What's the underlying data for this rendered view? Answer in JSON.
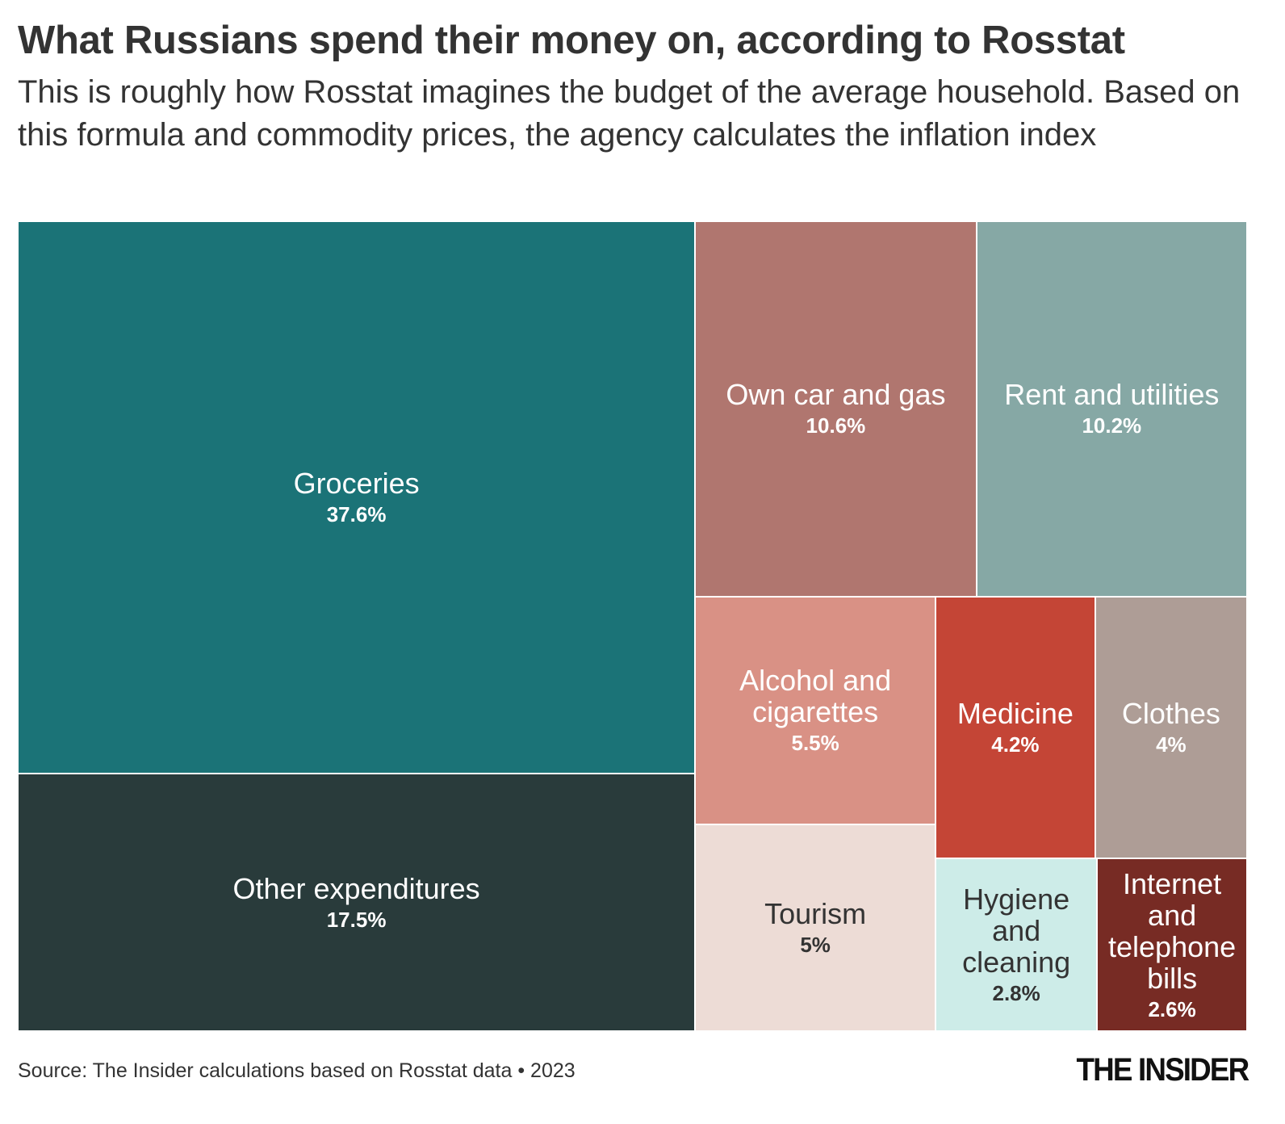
{
  "chart_data": {
    "type": "treemap",
    "title": "What Russians spend their money on, according to Rosstat",
    "subtitle": "This is roughly how Rosstat imagines the budget of the average household. Based on this formula and commodity prices, the agency calculates the inflation index",
    "source": "Source: The Insider calculations based on Rosstat data • 2023",
    "logo": "THE INSIDER",
    "categories": [
      "Groceries",
      "Other expenditures",
      "Own car and gas",
      "Rent and utilities",
      "Alcohol and cigarettes",
      "Tourism",
      "Medicine",
      "Clothes",
      "Hygiene and cleaning",
      "Internet and telephone bills"
    ],
    "values": [
      37.6,
      17.5,
      10.6,
      10.2,
      5.5,
      5,
      4.2,
      4,
      2.8,
      2.6
    ],
    "value_labels": [
      "37.6%",
      "17.5%",
      "10.6%",
      "10.2%",
      "5.5%",
      "5%",
      "4.2%",
      "4%",
      "2.8%",
      "2.6%"
    ],
    "colors": [
      "#1b7377",
      "#293b3b",
      "#b0766f",
      "#86a8a5",
      "#d99185",
      "#eddcd6",
      "#c44536",
      "#ae9d96",
      "#cdece8",
      "#772b24"
    ]
  }
}
